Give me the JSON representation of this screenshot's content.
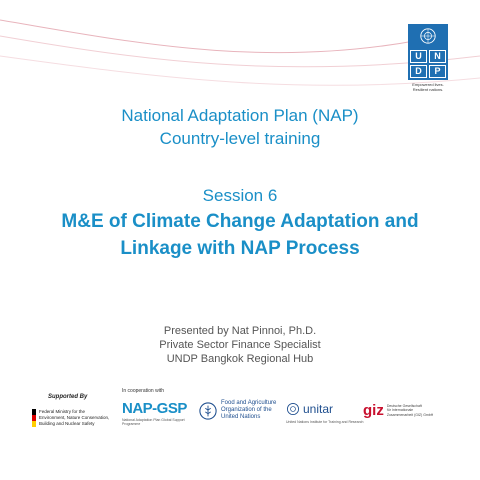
{
  "title_line1": "National Adaptation Plan (NAP)",
  "title_line2": "Country-level training",
  "session": "Session 6",
  "main_title_line1": "M&E of Climate Change Adaptation and",
  "main_title_line2": "Linkage with NAP Process",
  "presenter": {
    "line1": "Presented by Nat Pinnoi, Ph.D.",
    "line2": "Private Sector Finance Specialist",
    "line3": "UNDP Bangkok Regional Hub"
  },
  "undp": {
    "letters": [
      "U",
      "N",
      "D",
      "P"
    ],
    "tagline_1": "Empowered lives.",
    "tagline_2": "Resilient nations."
  },
  "footer": {
    "supported_by": "Supported By",
    "in_cooperation": "In cooperation with",
    "bmu_text_1": "Federal Ministry for the",
    "bmu_text_2": "Environment, Nature Conservation,",
    "bmu_text_3": "Building and Nuclear Safety",
    "napgsp": "NAP-GSP",
    "napgsp_sub": "National Adaptation Plan Global Support Programme",
    "fao_1": "Food and Agriculture",
    "fao_2": "Organization of the",
    "fao_3": "United Nations",
    "unitar": "unitar",
    "unitar_sub": "United Nations Institute for Training and Research",
    "giz": "giz",
    "giz_sub_1": "Deutsche Gesellschaft",
    "giz_sub_2": "für Internationale",
    "giz_sub_3": "Zusammenarbeit (GIZ) GmbH"
  },
  "colors": {
    "title_blue": "#1a8fc7",
    "undp_blue": "#1f6fb2",
    "giz_red": "#c8102e",
    "curve_pink": "#e8b4bc"
  }
}
